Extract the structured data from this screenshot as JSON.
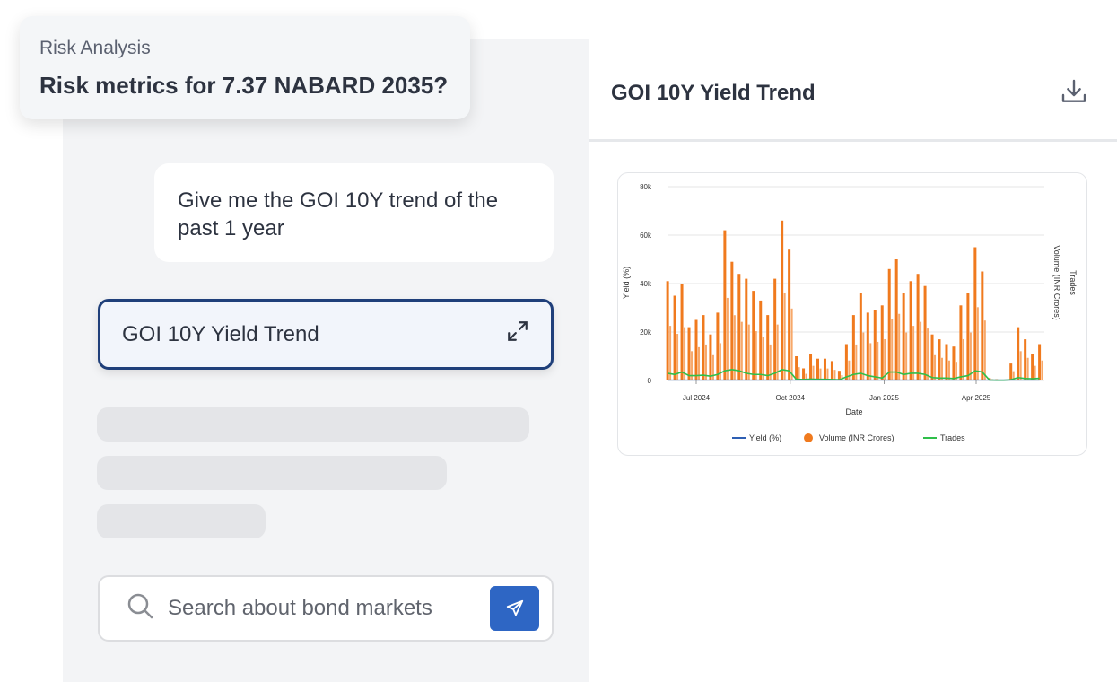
{
  "float_card": {
    "subtitle": "Risk Analysis",
    "question": "Risk metrics for 7.37 NABARD 2035?"
  },
  "chat": {
    "user_message": "Give me the GOI 10Y trend of the past 1 year",
    "result_card_title": "GOI 10Y Yield Trend",
    "expand_icon": "expand-icon"
  },
  "search": {
    "placeholder": "Search about bond markets",
    "search_icon": "search-icon",
    "send_icon": "send-icon"
  },
  "panel": {
    "title": "GOI 10Y Yield Trend",
    "download_icon": "download-icon"
  },
  "colors": {
    "yield": "#2e5fb3",
    "volume": "#f07a1e",
    "trades": "#2fbf4a",
    "accent": "#2e66c4",
    "card_border": "#1f3f7a"
  },
  "chart_data": {
    "type": "bar+line",
    "xlabel": "Date",
    "ylabel_left": "Yield (%)",
    "ylabel_right_1": "Volume (INR Crores)",
    "ylabel_right_2": "Trades",
    "ylim": [
      0,
      80000
    ],
    "y_ticks": [
      "0",
      "20k",
      "40k",
      "60k",
      "80k"
    ],
    "x_ticks": [
      {
        "date": "2024-07-01",
        "label": "Jul 2024"
      },
      {
        "date": "2024-10-01",
        "label": "Oct 2024"
      },
      {
        "date": "2025-01-01",
        "label": "Jan 2025"
      },
      {
        "date": "2025-04-01",
        "label": "Apr 2025"
      }
    ],
    "grid": true,
    "legend_placement": "bottom",
    "legend": [
      "Yield (%)",
      "Volume (INR Crores)",
      "Trades"
    ],
    "x": [
      "2024-06-03",
      "2024-06-10",
      "2024-06-17",
      "2024-06-24",
      "2024-07-01",
      "2024-07-08",
      "2024-07-15",
      "2024-07-22",
      "2024-07-29",
      "2024-08-05",
      "2024-08-12",
      "2024-08-19",
      "2024-08-26",
      "2024-09-02",
      "2024-09-09",
      "2024-09-16",
      "2024-09-23",
      "2024-09-30",
      "2024-10-07",
      "2024-10-14",
      "2024-10-21",
      "2024-10-28",
      "2024-11-04",
      "2024-11-11",
      "2024-11-18",
      "2024-11-25",
      "2024-12-02",
      "2024-12-09",
      "2024-12-16",
      "2024-12-23",
      "2024-12-30",
      "2025-01-06",
      "2025-01-13",
      "2025-01-20",
      "2025-01-27",
      "2025-02-03",
      "2025-02-10",
      "2025-02-17",
      "2025-02-24",
      "2025-03-03",
      "2025-03-10",
      "2025-03-17",
      "2025-03-24",
      "2025-03-31",
      "2025-04-07",
      "2025-04-14",
      "2025-04-21",
      "2025-04-28",
      "2025-05-05",
      "2025-05-12",
      "2025-05-19",
      "2025-05-26",
      "2025-06-02"
    ],
    "series": [
      {
        "name": "Volume (INR Crores)",
        "kind": "bar",
        "values": [
          41000,
          35000,
          40000,
          22000,
          25000,
          27000,
          19000,
          28000,
          62000,
          49000,
          44000,
          42000,
          37000,
          33000,
          27000,
          42000,
          66000,
          54000,
          10000,
          5000,
          11000,
          9000,
          9000,
          8000,
          4000,
          15000,
          27000,
          36000,
          28000,
          29000,
          31000,
          46000,
          50000,
          36000,
          41000,
          44000,
          39000,
          19000,
          17000,
          15000,
          14000,
          31000,
          36000,
          55000,
          45000,
          1000,
          500,
          0,
          7000,
          22000,
          17000,
          11000,
          15000
        ]
      },
      {
        "name": "Trades",
        "kind": "line",
        "values": [
          3000,
          2500,
          3500,
          2000,
          2000,
          2200,
          1800,
          2500,
          4000,
          4500,
          4000,
          3000,
          2500,
          2500,
          2000,
          3000,
          4500,
          4000,
          500,
          400,
          600,
          500,
          500,
          400,
          300,
          1500,
          2500,
          3000,
          2000,
          1500,
          1000,
          3500,
          3500,
          2500,
          3000,
          3000,
          2500,
          1200,
          1000,
          1000,
          800,
          1500,
          2000,
          4000,
          3500,
          200,
          100,
          100,
          300,
          1200,
          800,
          700,
          900
        ]
      },
      {
        "name": "Yield (%)",
        "kind": "line",
        "values": [
          7.0,
          7.0,
          6.98,
          7.01,
          7.0,
          6.98,
          6.97,
          6.95,
          6.9,
          6.86,
          6.87,
          6.86,
          6.85,
          6.8,
          6.78,
          6.76,
          6.75,
          6.75,
          6.77,
          6.8,
          6.84,
          6.85,
          6.82,
          6.83,
          6.84,
          6.8,
          6.73,
          6.75,
          6.78,
          6.79,
          6.78,
          6.77,
          6.77,
          6.72,
          6.7,
          6.7,
          6.72,
          6.73,
          6.73,
          6.74,
          6.72,
          6.68,
          6.62,
          6.58,
          6.45,
          6.36,
          6.33,
          6.35,
          6.35,
          6.28,
          6.25,
          6.22,
          6.3
        ]
      }
    ]
  }
}
